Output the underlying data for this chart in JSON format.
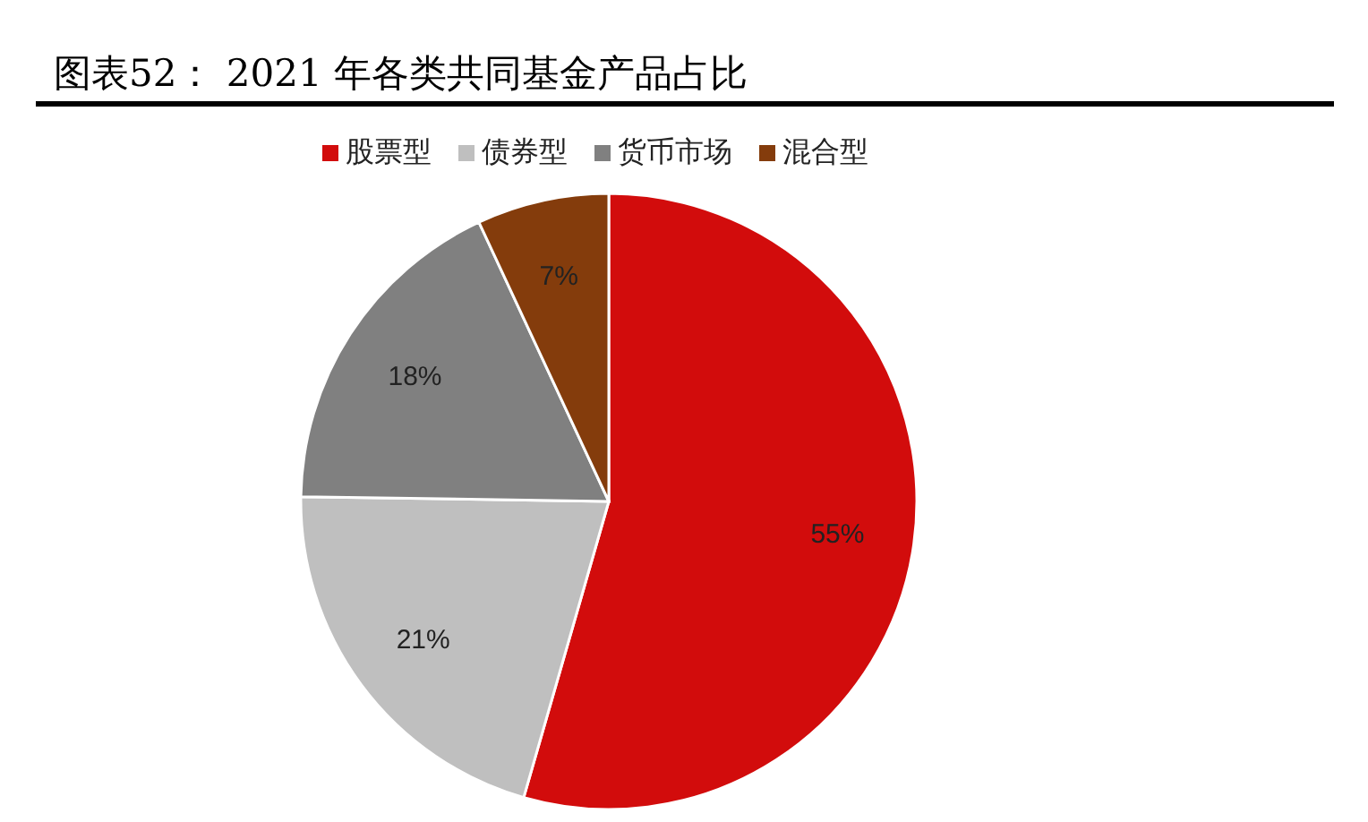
{
  "chart_data": {
    "type": "pie",
    "title": "图表52： 2021 年各类共同基金产品占比",
    "categories": [
      "股票型",
      "债券型",
      "货币市场",
      "混合型"
    ],
    "values": [
      55,
      21,
      18,
      7
    ],
    "value_labels": [
      "55%",
      "21%",
      "18%",
      "7%"
    ],
    "colors": [
      "#d20c0c",
      "#bfbfbf",
      "#808080",
      "#843c0c"
    ],
    "legend": "top"
  }
}
